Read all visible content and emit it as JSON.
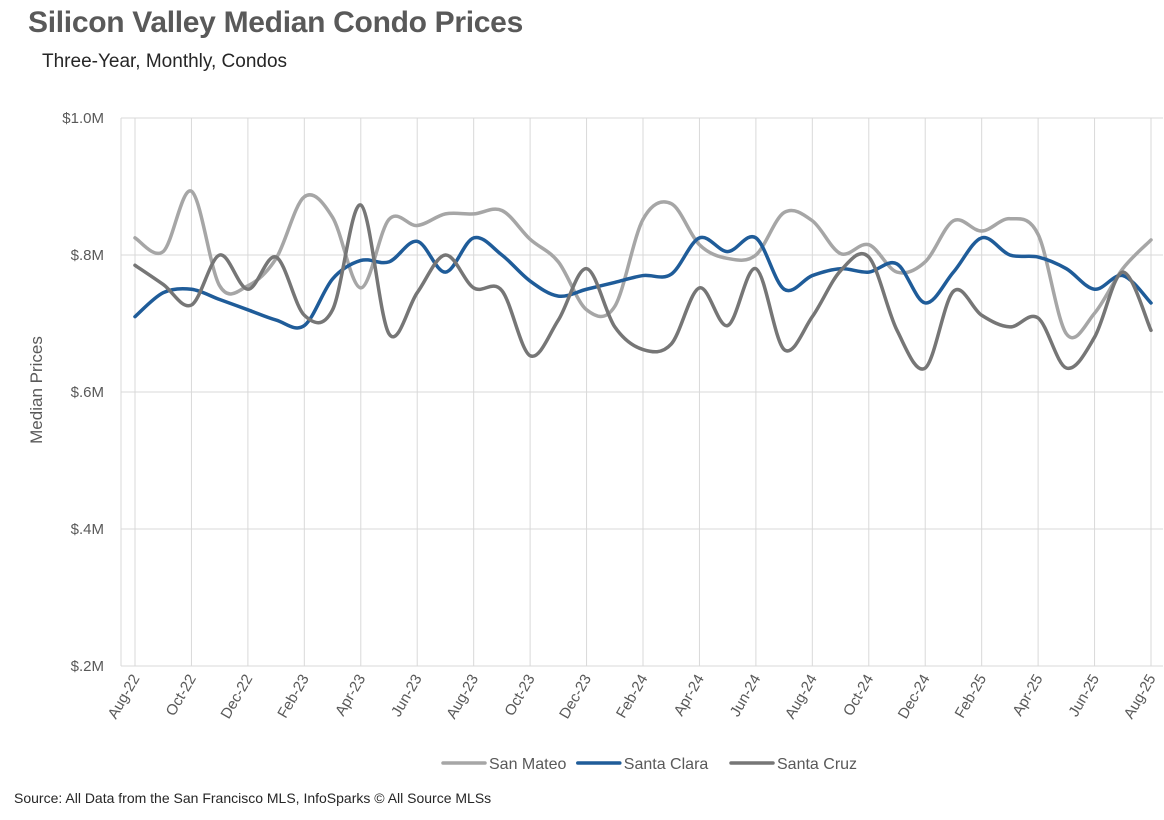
{
  "chart_data": {
    "type": "line",
    "title": "Silicon Valley Median Condo Prices",
    "subtitle": "Three-Year, Monthly, Condos",
    "xlabel": "",
    "ylabel": "Median Prices",
    "ylim": [
      0.2,
      1.0
    ],
    "y_ticks": [
      0.2,
      0.4,
      0.6,
      0.8,
      1.0
    ],
    "y_tick_labels": [
      "$.2M",
      "$.4M",
      "$.6M",
      "$.8M",
      "$1.0M"
    ],
    "grid": true,
    "legend_position": "bottom",
    "categories": [
      "Aug-22",
      "Sep-22",
      "Oct-22",
      "Nov-22",
      "Dec-22",
      "Jan-23",
      "Feb-23",
      "Mar-23",
      "Apr-23",
      "May-23",
      "Jun-23",
      "Jul-23",
      "Aug-23",
      "Sep-23",
      "Oct-23",
      "Nov-23",
      "Dec-23",
      "Jan-24",
      "Feb-24",
      "Mar-24",
      "Apr-24",
      "May-24",
      "Jun-24",
      "Jul-24",
      "Aug-24",
      "Sep-24",
      "Oct-24",
      "Nov-24",
      "Dec-24",
      "Jan-25",
      "Feb-25",
      "Mar-25",
      "Apr-25",
      "May-25",
      "Jun-25",
      "Jul-25",
      "Aug-25"
    ],
    "x_tick_labels": [
      "Aug-22",
      "Oct-22",
      "Dec-22",
      "Feb-23",
      "Apr-23",
      "Jun-23",
      "Aug-23",
      "Oct-23",
      "Dec-23",
      "Feb-24",
      "Apr-24",
      "Jun-24",
      "Aug-24",
      "Oct-24",
      "Dec-24",
      "Feb-25",
      "Apr-25",
      "Jun-25",
      "Aug-25"
    ],
    "series": [
      {
        "name": "San Mateo",
        "color": "#A6A6A6",
        "values": [
          0.825,
          0.805,
          0.893,
          0.755,
          0.755,
          0.795,
          0.885,
          0.855,
          0.752,
          0.852,
          0.843,
          0.86,
          0.86,
          0.865,
          0.823,
          0.79,
          0.72,
          0.725,
          0.852,
          0.875,
          0.815,
          0.795,
          0.8,
          0.862,
          0.85,
          0.802,
          0.815,
          0.775,
          0.79,
          0.85,
          0.835,
          0.853,
          0.83,
          0.685,
          0.715,
          0.78,
          0.822
        ]
      },
      {
        "name": "Santa Clara",
        "color": "#1F5C99",
        "values": [
          0.71,
          0.745,
          0.75,
          0.735,
          0.72,
          0.705,
          0.697,
          0.765,
          0.792,
          0.79,
          0.82,
          0.775,
          0.825,
          0.8,
          0.762,
          0.74,
          0.75,
          0.76,
          0.77,
          0.772,
          0.825,
          0.805,
          0.825,
          0.75,
          0.77,
          0.78,
          0.775,
          0.787,
          0.73,
          0.775,
          0.825,
          0.8,
          0.797,
          0.78,
          0.75,
          0.77,
          0.73
        ]
      },
      {
        "name": "Santa Cruz",
        "color": "#767676",
        "values": [
          0.785,
          0.757,
          0.727,
          0.8,
          0.75,
          0.797,
          0.712,
          0.72,
          0.873,
          0.685,
          0.745,
          0.8,
          0.752,
          0.748,
          0.653,
          0.705,
          0.78,
          0.695,
          0.662,
          0.67,
          0.752,
          0.697,
          0.78,
          0.662,
          0.71,
          0.777,
          0.797,
          0.69,
          0.635,
          0.747,
          0.712,
          0.695,
          0.708,
          0.635,
          0.68,
          0.775,
          0.69
        ]
      }
    ]
  },
  "source": "Source: All Data from the San Francisco MLS, InfoSparks © All Source MLSs"
}
